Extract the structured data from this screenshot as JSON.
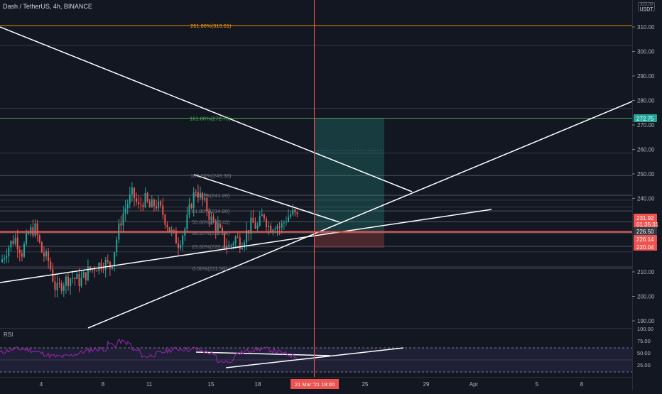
{
  "header": {
    "title": "Dash / TetherUS, 4h, BINANCE"
  },
  "usdt_badge": {
    "line1": "USDT",
    "line2": "320.00"
  },
  "price_axis": {
    "labels": [
      "310.00",
      "300.00",
      "290.00",
      "280.00",
      "270.00",
      "260.00",
      "250.00",
      "240.00",
      "210.00",
      "200.00",
      "190.00"
    ],
    "badges": [
      {
        "text": "272.75",
        "color": "#26a69a"
      },
      {
        "text": "231.92",
        "color": "#ef5350"
      },
      {
        "text": "01:35:31",
        "color": "#ef5350"
      },
      {
        "text": "226.50",
        "color": "#363a45"
      },
      {
        "text": "226.14",
        "color": "#ef5350"
      },
      {
        "text": "220.04",
        "color": "#ef5350"
      }
    ]
  },
  "fib": {
    "top": "261.80%(310.61)",
    "upper": "161.80%(272.75)",
    "levels": [
      "100.00%(249.36)",
      "78.60%(241.26)",
      "61.80%(234.90)",
      "50.00%(230.43)",
      "38.20%(225.96)",
      "23.60%(220.44)",
      "0.00%(211.50)"
    ]
  },
  "rsi": {
    "label": "RSI",
    "axis": [
      "100.00",
      "75.00",
      "50.00",
      "25.00"
    ]
  },
  "time_axis": {
    "labels": [
      "4",
      "8",
      "11",
      "15",
      "18",
      "25",
      "29",
      "Apr",
      "5",
      "8"
    ],
    "crosshair": "21 Mar '21   19:00"
  },
  "colors": {
    "up": "#26a69a",
    "down": "#ef5350",
    "accent": "#2962ff",
    "background": "#131722"
  },
  "chart_data": {
    "type": "candlestick",
    "symbol": "Dash / TetherUS",
    "interval": "4h",
    "exchange": "BINANCE",
    "last_price": 231.92,
    "ylim": [
      186,
      325
    ],
    "fib_levels": [
      {
        "ratio": "261.80%",
        "price": 310.61
      },
      {
        "ratio": "161.80%",
        "price": 272.75
      },
      {
        "ratio": "100.00%",
        "price": 249.36
      },
      {
        "ratio": "78.60%",
        "price": 241.26
      },
      {
        "ratio": "61.80%",
        "price": 234.9
      },
      {
        "ratio": "50.00%",
        "price": 230.43
      },
      {
        "ratio": "38.20%",
        "price": 225.96
      },
      {
        "ratio": "23.60%",
        "price": 220.44
      },
      {
        "ratio": "0.00%",
        "price": 211.5
      }
    ],
    "position": {
      "entry": 226.5,
      "target": 272.75,
      "stop": 220.04
    },
    "rsi": {
      "ylim": [
        0,
        100
      ],
      "upper": 70,
      "lower": 30
    }
  }
}
